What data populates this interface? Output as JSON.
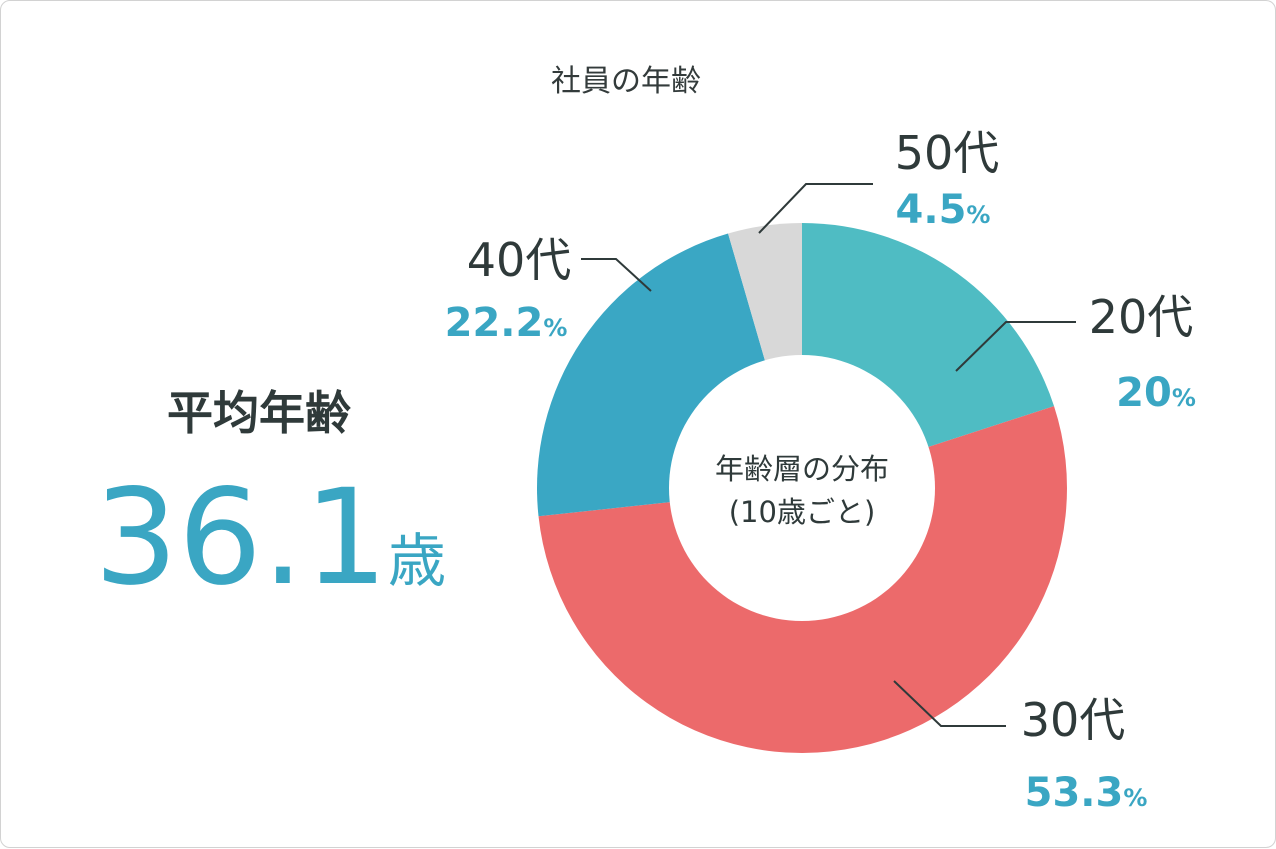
{
  "chart_data": {
    "type": "pie",
    "title": "社員の年齢",
    "center_label": [
      "年齢層の分布",
      "(10歳ごと)"
    ],
    "categories": [
      "20代",
      "30代",
      "40代",
      "50代"
    ],
    "values": [
      20,
      53.3,
      22.2,
      4.5
    ],
    "value_labels": [
      "20",
      "53.3",
      "22.2",
      "4.5"
    ],
    "unit": "%",
    "colors": [
      "#4fbcc3",
      "#ec6a6b",
      "#3aa7c4",
      "#d8d8d8"
    ]
  },
  "average": {
    "label": "平均年齢",
    "value": "36.1",
    "unit": "歳"
  }
}
